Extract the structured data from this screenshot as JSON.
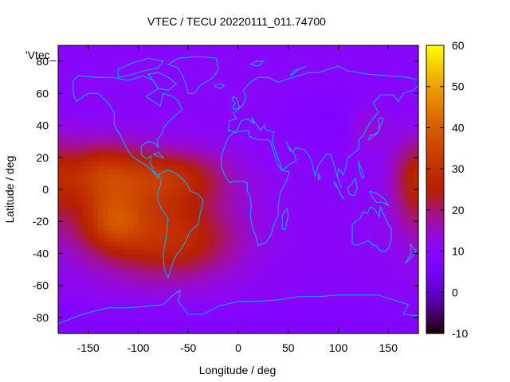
{
  "chart_data": {
    "type": "heatmap",
    "title": "VTEC / TECU 20220111_011.74700",
    "xlabel": "Longitude / deg",
    "ylabel": "Latitude / deg",
    "key_label": "'Vtec_",
    "xlim": [
      -180,
      180
    ],
    "ylim": [
      -90,
      90
    ],
    "zlim": [
      -10,
      60
    ],
    "xticks": [
      -150,
      -100,
      -50,
      0,
      50,
      100,
      150
    ],
    "yticks": [
      -80,
      -60,
      -40,
      -20,
      0,
      20,
      40,
      60,
      80
    ],
    "colorbar_ticks": [
      -10,
      0,
      10,
      20,
      30,
      40,
      50,
      60
    ],
    "colormap": "black-purple-red-orange-yellow",
    "background_level": 10,
    "coastline_color": "#00b4ff",
    "grid": false,
    "anomalies": [
      {
        "lon": -140,
        "lat": 10,
        "sigma_lon": 30,
        "sigma_lat": 14,
        "value": 17
      },
      {
        "lon": -70,
        "lat": 8,
        "sigma_lon": 40,
        "sigma_lat": 12,
        "value": 15
      },
      {
        "lon": -90,
        "lat": -22,
        "sigma_lon": 55,
        "sigma_lat": 22,
        "value": 15
      },
      {
        "lon": -125,
        "lat": -20,
        "sigma_lon": 22,
        "sigma_lat": 12,
        "value": 14
      },
      {
        "lon": -55,
        "lat": -35,
        "sigma_lon": 40,
        "sigma_lat": 15,
        "value": 8
      },
      {
        "lon": 175,
        "lat": 5,
        "sigma_lon": 15,
        "sigma_lat": 20,
        "value": 10
      },
      {
        "lon": 100,
        "lat": 45,
        "sigma_lon": 40,
        "sigma_lat": 15,
        "value": -3
      },
      {
        "lon": 130,
        "lat": 40,
        "sigma_lon": 15,
        "sigma_lat": 10,
        "value": 6
      }
    ]
  }
}
